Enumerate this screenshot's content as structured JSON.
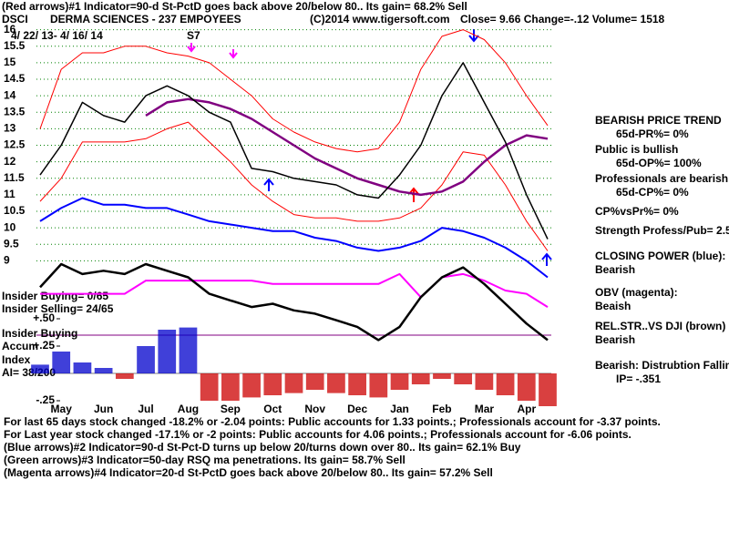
{
  "header": {
    "line1": "(Red arrows)#1 Indicator=90-d St-PctD goes back above 20/below 80..  Its gain= 68.2% Sell",
    "symbol": "DSCI",
    "company": "DERMA SCIENCES - 237 EMPOYEES",
    "copyright": "(C)2014 www.tigersoft.com",
    "quote": "Close=  9.66  Change=-.12 Volume= 1518",
    "range": "4/ 22/ 13- 4/ 16/ 14",
    "signal": "S7"
  },
  "side_panel": [
    {
      "text": "BEARISH PRICE TREND",
      "indent": false
    },
    {
      "text": "65d-PR%= 0%",
      "indent": true
    },
    {
      "text": "Public is bullish",
      "indent": false
    },
    {
      "text": "65d-OP%= 100%",
      "indent": true
    },
    {
      "text": "Professionals are bearish",
      "indent": false
    },
    {
      "text": "65d-CP%= 0%",
      "indent": true
    },
    {
      "text": "CP%vsPr%=  0%",
      "indent": false
    },
    {
      "text": "Strength Profess/Pub= 2.5",
      "indent": false
    },
    {
      "text": "CLOSING POWER (blue):",
      "indent": false
    },
    {
      "text": "Bearish",
      "indent": false
    },
    {
      "text": "OBV (magenta):",
      "indent": false
    },
    {
      "text": "Beaish",
      "indent": false
    },
    {
      "text": "REL.STR..VS DJI (brown)",
      "indent": false
    },
    {
      "text": "Bearish",
      "indent": false
    },
    {
      "text": "Bearish: Distrubtion Falling",
      "indent": false
    },
    {
      "text": "IP= -.351",
      "indent": true
    }
  ],
  "insider": [
    "Insider Buying= 0/65",
    "Insider Selling= 24/65",
    "Insider Buying",
    "Accum",
    "Index",
    "AI= 38/200"
  ],
  "footer": [
    "For last 65 days stock changed -18.2% or -2.04 points:  Public accounts for  1.33 points.;  Professionals account for -3.37 points.",
    "For Last year stock changed -17.1% or -2 points:  Public accounts for  4.06 points.;  Professionals account for -6.06 points.",
    "(Blue arrows)#2 Indicator=90-d St-Pct-D turns up below 20/turns down over 80..  Its gain= 62.1% Buy",
    "(Green arrows)#3 Indicator=50-day RSQ ma penetrations.  Its gain= 58.7% Sell",
    "(Magenta arrows)#4 Indicator=20-d St-PctD goes back above 20/below 80..  Its gain= 57.2% Sell"
  ],
  "chart_data": [
    {
      "type": "line",
      "categories": [
        null,
        "May",
        null,
        "Jun",
        null,
        "Jul",
        null,
        "Aug",
        null,
        "Sep",
        null,
        "Oct",
        null,
        "Nov",
        null,
        "Dec",
        null,
        "Jan",
        null,
        "Feb",
        null,
        "Mar",
        null,
        "Apr",
        null
      ],
      "series": [
        {
          "color": "#ff0000",
          "width": 1,
          "values": [
            13.0,
            14.8,
            15.3,
            15.3,
            15.5,
            15.5,
            15.3,
            15.2,
            15.0,
            14.5,
            14.0,
            13.3,
            12.9,
            12.6,
            12.4,
            12.3,
            12.4,
            13.2,
            14.8,
            15.8,
            16.0,
            15.7,
            15.0,
            14.0,
            13.1
          ]
        },
        {
          "color": "#ff0000",
          "width": 1,
          "values": [
            10.8,
            11.5,
            12.6,
            12.6,
            12.6,
            12.7,
            13.0,
            13.2,
            12.6,
            12.0,
            11.3,
            10.8,
            10.4,
            10.3,
            10.3,
            10.2,
            10.2,
            10.3,
            10.6,
            11.3,
            12.3,
            12.2,
            11.3,
            10.2,
            9.3
          ]
        },
        {
          "color": "#800080",
          "width": 2.5,
          "values": [
            null,
            null,
            null,
            null,
            null,
            13.4,
            13.8,
            13.9,
            13.8,
            13.6,
            13.3,
            12.9,
            12.5,
            12.1,
            11.8,
            11.5,
            11.3,
            11.1,
            11.0,
            11.1,
            11.4,
            12.0,
            12.5,
            12.8,
            12.7
          ]
        },
        {
          "color": "#000000",
          "width": 1.5,
          "values": [
            11.6,
            12.5,
            13.8,
            13.4,
            13.2,
            14.0,
            14.3,
            14.0,
            13.5,
            13.2,
            11.8,
            11.7,
            11.5,
            11.4,
            11.3,
            11.0,
            10.9,
            11.6,
            12.5,
            14.0,
            15.0,
            13.8,
            12.6,
            11.0,
            9.66
          ]
        },
        {
          "color": "#0000ff",
          "width": 2,
          "values": [
            10.2,
            10.6,
            10.9,
            10.7,
            10.7,
            10.6,
            10.6,
            10.4,
            10.2,
            10.1,
            10.0,
            9.9,
            9.9,
            9.7,
            9.6,
            9.4,
            9.3,
            9.4,
            9.6,
            10.0,
            9.9,
            9.7,
            9.4,
            9.0,
            8.5
          ]
        },
        {
          "color": "#ff00ff",
          "width": 2,
          "values": [
            8.0,
            8.0,
            8.0,
            8.0,
            8.0,
            8.4,
            8.4,
            8.4,
            8.4,
            8.4,
            8.4,
            8.3,
            8.3,
            8.3,
            8.3,
            8.3,
            8.3,
            8.6,
            7.9,
            8.5,
            8.6,
            8.4,
            8.1,
            8.0,
            7.6
          ]
        },
        {
          "color": "#000000",
          "width": 2.5,
          "values": [
            8.2,
            8.9,
            8.6,
            8.7,
            8.6,
            8.9,
            8.7,
            8.5,
            8.0,
            7.8,
            7.6,
            7.7,
            7.5,
            7.4,
            7.2,
            7.0,
            6.6,
            7.0,
            7.9,
            8.5,
            8.8,
            8.3,
            7.7,
            7.1,
            6.6
          ]
        }
      ],
      "ylim": [
        6.5,
        16.1
      ],
      "yticks": [
        9,
        9.5,
        10,
        10.5,
        11,
        11.5,
        12,
        12.5,
        13,
        13.5,
        14,
        14.5,
        15,
        15.5,
        16
      ],
      "grid": true,
      "grid_color": "#008000"
    },
    {
      "type": "bar",
      "values": [
        0.08,
        0.2,
        0.1,
        0.05,
        -0.05,
        0.25,
        0.4,
        0.42,
        -0.25,
        -0.25,
        -0.22,
        -0.2,
        -0.18,
        -0.15,
        -0.18,
        -0.2,
        -0.22,
        -0.15,
        -0.1,
        -0.05,
        -0.1,
        -0.15,
        -0.2,
        -0.25,
        -0.3
      ],
      "pos_color": "#0000cc",
      "neg_color": "#cc0000",
      "ylim": [
        -0.3,
        0.55
      ],
      "yticks": [
        {
          "value": 0.5,
          "label": "+.50"
        },
        {
          "value": 0.25,
          "label": "+.25"
        },
        {
          "value": -0.25,
          "label": "-.25"
        }
      ]
    }
  ]
}
